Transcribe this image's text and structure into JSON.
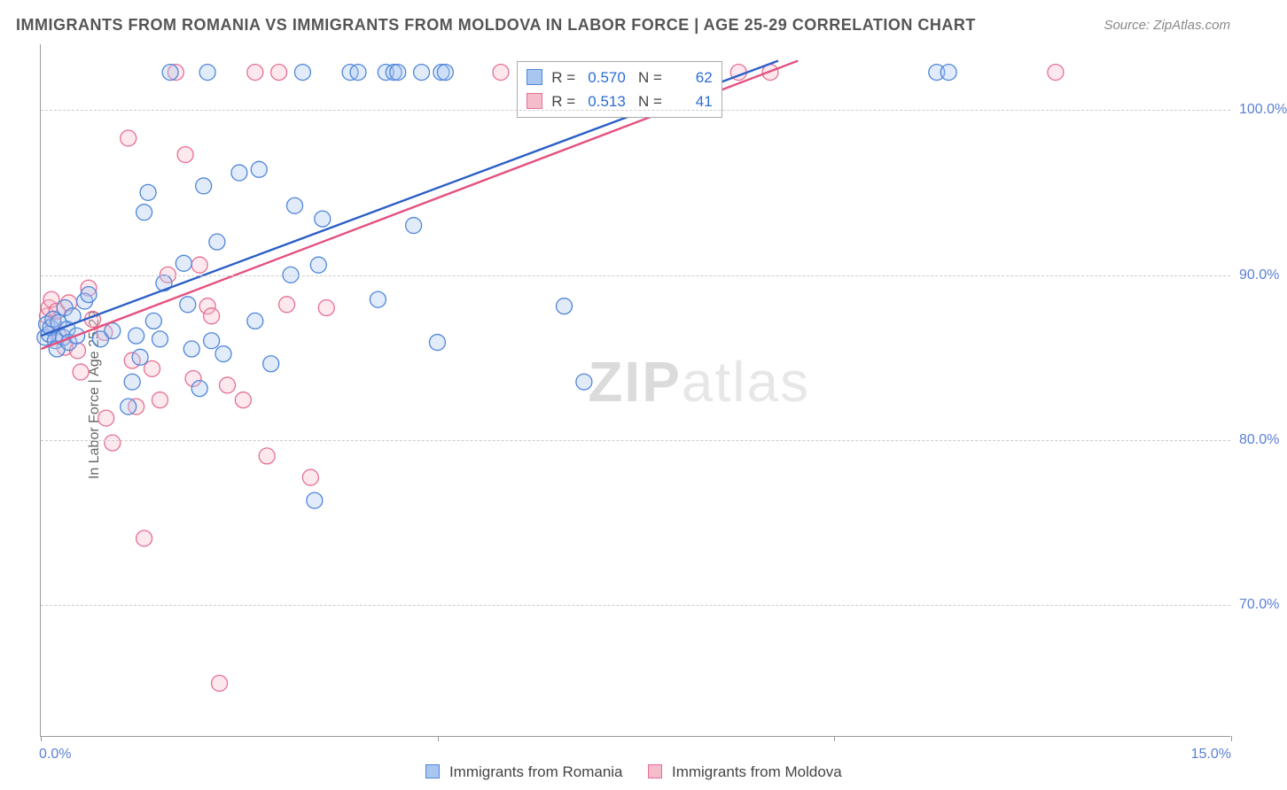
{
  "title": "IMMIGRANTS FROM ROMANIA VS IMMIGRANTS FROM MOLDOVA IN LABOR FORCE | AGE 25-29 CORRELATION CHART",
  "source": "Source: ZipAtlas.com",
  "y_axis_label": "In Labor Force | Age 25-29",
  "watermark_a": "ZIP",
  "watermark_b": "atlas",
  "chart": {
    "type": "scatter",
    "background_color": "#ffffff",
    "grid_color": "#cccccc",
    "axis_color": "#999999",
    "xlim": [
      0,
      15
    ],
    "ylim": [
      62,
      104
    ],
    "y_gridlines": [
      70,
      80,
      90,
      100
    ],
    "y_tick_labels": [
      "70.0%",
      "80.0%",
      "90.0%",
      "100.0%"
    ],
    "x_ticks": [
      0,
      5,
      10,
      15
    ],
    "x_tick_labels_shown": {
      "0": "0.0%",
      "15": "15.0%"
    },
    "label_color": "#5b7fd6",
    "label_fontsize": 16,
    "marker_radius": 9,
    "marker_fill_opacity": 0.35,
    "marker_stroke_width": 1.3,
    "line_width": 2.4,
    "series": [
      {
        "name": "Immigrants from Romania",
        "fill": "#a8c6f0",
        "stroke": "#4f86d9",
        "line_color": "#2b5fc7",
        "R": "0.570",
        "N": "62",
        "trend": {
          "x1": 0,
          "y1": 86.3,
          "x2": 9.3,
          "y2": 103.0
        },
        "points": [
          [
            0.05,
            86.2
          ],
          [
            0.07,
            87.0
          ],
          [
            0.1,
            86.4
          ],
          [
            0.12,
            86.8
          ],
          [
            0.15,
            87.3
          ],
          [
            0.18,
            86.0
          ],
          [
            0.2,
            85.5
          ],
          [
            0.22,
            87.1
          ],
          [
            0.28,
            86.2
          ],
          [
            0.3,
            88.0
          ],
          [
            0.33,
            86.7
          ],
          [
            0.35,
            85.9
          ],
          [
            0.4,
            87.5
          ],
          [
            0.45,
            86.3
          ],
          [
            0.55,
            88.4
          ],
          [
            0.6,
            88.8
          ],
          [
            0.75,
            86.1
          ],
          [
            0.9,
            86.6
          ],
          [
            1.1,
            82.0
          ],
          [
            1.15,
            83.5
          ],
          [
            1.2,
            86.3
          ],
          [
            1.25,
            85.0
          ],
          [
            1.3,
            93.8
          ],
          [
            1.35,
            95.0
          ],
          [
            1.42,
            87.2
          ],
          [
            1.5,
            86.1
          ],
          [
            1.55,
            89.5
          ],
          [
            1.63,
            102.3
          ],
          [
            1.8,
            90.7
          ],
          [
            1.85,
            88.2
          ],
          [
            1.9,
            85.5
          ],
          [
            2.0,
            83.1
          ],
          [
            2.05,
            95.4
          ],
          [
            2.1,
            102.3
          ],
          [
            2.15,
            86.0
          ],
          [
            2.22,
            92.0
          ],
          [
            2.3,
            85.2
          ],
          [
            2.5,
            96.2
          ],
          [
            2.7,
            87.2
          ],
          [
            2.75,
            96.4
          ],
          [
            2.9,
            84.6
          ],
          [
            3.15,
            90.0
          ],
          [
            3.2,
            94.2
          ],
          [
            3.3,
            102.3
          ],
          [
            3.45,
            76.3
          ],
          [
            3.5,
            90.6
          ],
          [
            3.55,
            93.4
          ],
          [
            3.9,
            102.3
          ],
          [
            4.0,
            102.3
          ],
          [
            4.25,
            88.5
          ],
          [
            4.35,
            102.3
          ],
          [
            4.45,
            102.3
          ],
          [
            4.5,
            102.3
          ],
          [
            4.7,
            93.0
          ],
          [
            4.8,
            102.3
          ],
          [
            5.0,
            85.9
          ],
          [
            5.05,
            102.3
          ],
          [
            5.1,
            102.3
          ],
          [
            6.6,
            88.1
          ],
          [
            6.85,
            83.5
          ],
          [
            11.3,
            102.3
          ],
          [
            11.45,
            102.3
          ]
        ]
      },
      {
        "name": "Immigrants from Moldova",
        "fill": "#f5bccb",
        "stroke": "#e66f93",
        "line_color": "#e4517e",
        "R": "0.513",
        "N": "41",
        "trend": {
          "x1": 0,
          "y1": 85.5,
          "x2": 9.55,
          "y2": 103.0
        },
        "points": [
          [
            0.08,
            87.5
          ],
          [
            0.1,
            88.0
          ],
          [
            0.13,
            88.5
          ],
          [
            0.16,
            87.0
          ],
          [
            0.2,
            87.8
          ],
          [
            0.22,
            86.3
          ],
          [
            0.3,
            85.6
          ],
          [
            0.35,
            88.3
          ],
          [
            0.46,
            85.4
          ],
          [
            0.5,
            84.1
          ],
          [
            0.6,
            89.2
          ],
          [
            0.65,
            87.3
          ],
          [
            0.8,
            86.5
          ],
          [
            0.82,
            81.3
          ],
          [
            0.9,
            79.8
          ],
          [
            1.1,
            98.3
          ],
          [
            1.15,
            84.8
          ],
          [
            1.2,
            82.0
          ],
          [
            1.3,
            74.0
          ],
          [
            1.4,
            84.3
          ],
          [
            1.5,
            82.4
          ],
          [
            1.6,
            90.0
          ],
          [
            1.7,
            102.3
          ],
          [
            1.82,
            97.3
          ],
          [
            1.92,
            83.7
          ],
          [
            2.0,
            90.6
          ],
          [
            2.1,
            88.1
          ],
          [
            2.15,
            87.5
          ],
          [
            2.25,
            65.2
          ],
          [
            2.35,
            83.3
          ],
          [
            2.55,
            82.4
          ],
          [
            2.7,
            102.3
          ],
          [
            2.85,
            79.0
          ],
          [
            3.0,
            102.3
          ],
          [
            3.1,
            88.2
          ],
          [
            3.4,
            77.7
          ],
          [
            3.6,
            88.0
          ],
          [
            5.8,
            102.3
          ],
          [
            8.8,
            102.3
          ],
          [
            9.2,
            102.3
          ],
          [
            12.8,
            102.3
          ]
        ]
      }
    ]
  },
  "legend_box": {
    "labels": {
      "R": "R =",
      "N": "N ="
    }
  },
  "legend_bottom": {
    "s1": "Immigrants from Romania",
    "s2": "Immigrants from Moldova"
  }
}
